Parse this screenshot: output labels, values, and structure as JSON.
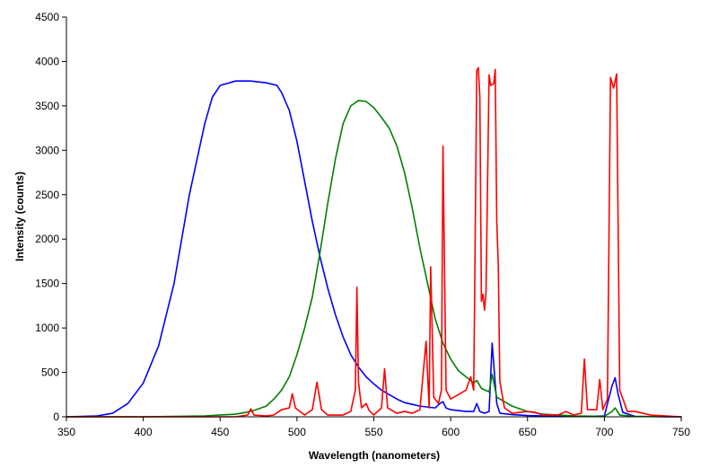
{
  "chart_data": {
    "type": "line",
    "title": "",
    "xlabel": "Wavelength (nanometers)",
    "ylabel": "Intensity (counts)",
    "xlim": [
      350,
      750
    ],
    "ylim": [
      0,
      4500
    ],
    "xticks": [
      350,
      400,
      450,
      500,
      550,
      600,
      650,
      700,
      750
    ],
    "yticks": [
      0,
      500,
      1000,
      1500,
      2000,
      2500,
      3000,
      3500,
      4000,
      4500
    ],
    "grid": false,
    "legend": "none",
    "series": [
      {
        "color": "#0000ff",
        "points": [
          [
            350,
            0
          ],
          [
            370,
            10
          ],
          [
            380,
            40
          ],
          [
            390,
            150
          ],
          [
            400,
            380
          ],
          [
            410,
            800
          ],
          [
            420,
            1500
          ],
          [
            430,
            2500
          ],
          [
            440,
            3300
          ],
          [
            445,
            3600
          ],
          [
            450,
            3730
          ],
          [
            460,
            3780
          ],
          [
            470,
            3780
          ],
          [
            480,
            3760
          ],
          [
            487,
            3730
          ],
          [
            490,
            3650
          ],
          [
            495,
            3450
          ],
          [
            500,
            3100
          ],
          [
            505,
            2650
          ],
          [
            510,
            2200
          ],
          [
            515,
            1800
          ],
          [
            520,
            1450
          ],
          [
            525,
            1150
          ],
          [
            530,
            900
          ],
          [
            535,
            700
          ],
          [
            540,
            560
          ],
          [
            545,
            450
          ],
          [
            550,
            370
          ],
          [
            555,
            300
          ],
          [
            560,
            250
          ],
          [
            565,
            200
          ],
          [
            570,
            160
          ],
          [
            575,
            140
          ],
          [
            580,
            120
          ],
          [
            585,
            110
          ],
          [
            590,
            100
          ],
          [
            593,
            150
          ],
          [
            595,
            170
          ],
          [
            597,
            100
          ],
          [
            600,
            80
          ],
          [
            605,
            70
          ],
          [
            610,
            60
          ],
          [
            615,
            60
          ],
          [
            617,
            150
          ],
          [
            619,
            60
          ],
          [
            622,
            40
          ],
          [
            625,
            60
          ],
          [
            627,
            830
          ],
          [
            628,
            600
          ],
          [
            630,
            150
          ],
          [
            632,
            40
          ],
          [
            640,
            25
          ],
          [
            650,
            15
          ],
          [
            660,
            10
          ],
          [
            680,
            8
          ],
          [
            690,
            5
          ],
          [
            700,
            10
          ],
          [
            705,
            350
          ],
          [
            707,
            440
          ],
          [
            709,
            250
          ],
          [
            712,
            50
          ],
          [
            720,
            5
          ],
          [
            740,
            0
          ],
          [
            750,
            0
          ]
        ]
      },
      {
        "color": "#008000",
        "points": [
          [
            350,
            0
          ],
          [
            400,
            0
          ],
          [
            440,
            10
          ],
          [
            460,
            30
          ],
          [
            470,
            60
          ],
          [
            480,
            120
          ],
          [
            485,
            200
          ],
          [
            490,
            300
          ],
          [
            495,
            450
          ],
          [
            500,
            700
          ],
          [
            505,
            1000
          ],
          [
            510,
            1350
          ],
          [
            515,
            1850
          ],
          [
            520,
            2400
          ],
          [
            525,
            2900
          ],
          [
            530,
            3300
          ],
          [
            535,
            3500
          ],
          [
            540,
            3560
          ],
          [
            545,
            3550
          ],
          [
            550,
            3480
          ],
          [
            555,
            3370
          ],
          [
            560,
            3250
          ],
          [
            565,
            3050
          ],
          [
            570,
            2750
          ],
          [
            575,
            2350
          ],
          [
            580,
            1900
          ],
          [
            585,
            1500
          ],
          [
            590,
            1100
          ],
          [
            595,
            830
          ],
          [
            600,
            650
          ],
          [
            605,
            520
          ],
          [
            610,
            450
          ],
          [
            615,
            380
          ],
          [
            617,
            410
          ],
          [
            620,
            320
          ],
          [
            625,
            280
          ],
          [
            627,
            480
          ],
          [
            630,
            220
          ],
          [
            640,
            120
          ],
          [
            650,
            60
          ],
          [
            660,
            30
          ],
          [
            680,
            10
          ],
          [
            700,
            5
          ],
          [
            705,
            60
          ],
          [
            707,
            100
          ],
          [
            710,
            20
          ],
          [
            720,
            5
          ],
          [
            750,
            0
          ]
        ]
      },
      {
        "color": "#ff0000",
        "points": [
          [
            350,
            0
          ],
          [
            460,
            0
          ],
          [
            468,
            20
          ],
          [
            470,
            90
          ],
          [
            472,
            20
          ],
          [
            480,
            10
          ],
          [
            485,
            20
          ],
          [
            490,
            80
          ],
          [
            495,
            100
          ],
          [
            497,
            260
          ],
          [
            499,
            100
          ],
          [
            505,
            20
          ],
          [
            510,
            80
          ],
          [
            513,
            390
          ],
          [
            516,
            80
          ],
          [
            520,
            20
          ],
          [
            530,
            20
          ],
          [
            535,
            60
          ],
          [
            538,
            300
          ],
          [
            539,
            1460
          ],
          [
            540,
            400
          ],
          [
            542,
            100
          ],
          [
            545,
            150
          ],
          [
            547,
            70
          ],
          [
            550,
            20
          ],
          [
            555,
            100
          ],
          [
            557,
            540
          ],
          [
            559,
            100
          ],
          [
            565,
            40
          ],
          [
            570,
            60
          ],
          [
            575,
            40
          ],
          [
            580,
            80
          ],
          [
            584,
            850
          ],
          [
            586,
            100
          ],
          [
            587,
            1690
          ],
          [
            589,
            220
          ],
          [
            592,
            150
          ],
          [
            594,
            300
          ],
          [
            595,
            3050
          ],
          [
            597,
            300
          ],
          [
            600,
            200
          ],
          [
            605,
            250
          ],
          [
            610,
            300
          ],
          [
            613,
            450
          ],
          [
            615,
            300
          ],
          [
            617,
            3900
          ],
          [
            618,
            3930
          ],
          [
            619,
            3600
          ],
          [
            620,
            1300
          ],
          [
            621,
            1380
          ],
          [
            622,
            1200
          ],
          [
            623,
            1400
          ],
          [
            625,
            3850
          ],
          [
            626,
            3730
          ],
          [
            628,
            3750
          ],
          [
            629,
            3910
          ],
          [
            630,
            2200
          ],
          [
            631,
            1700
          ],
          [
            632,
            400
          ],
          [
            635,
            100
          ],
          [
            640,
            40
          ],
          [
            650,
            60
          ],
          [
            655,
            50
          ],
          [
            660,
            20
          ],
          [
            670,
            20
          ],
          [
            675,
            60
          ],
          [
            680,
            20
          ],
          [
            685,
            40
          ],
          [
            687,
            650
          ],
          [
            689,
            80
          ],
          [
            695,
            80
          ],
          [
            697,
            420
          ],
          [
            699,
            80
          ],
          [
            702,
            200
          ],
          [
            704,
            3820
          ],
          [
            706,
            3700
          ],
          [
            708,
            3860
          ],
          [
            710,
            300
          ],
          [
            715,
            60
          ],
          [
            720,
            60
          ],
          [
            730,
            20
          ],
          [
            740,
            10
          ],
          [
            750,
            0
          ]
        ]
      }
    ]
  }
}
